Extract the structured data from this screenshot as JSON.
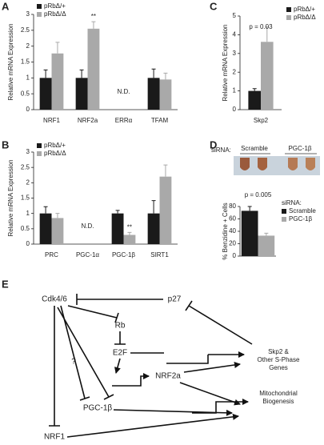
{
  "panel_labels": [
    "A",
    "B",
    "C",
    "D",
    "E"
  ],
  "image_labels": [
    "siRNA:",
    "Scramble",
    "PGC-1β"
  ],
  "chart_data": [
    {
      "type": "bar",
      "ylabel": "Relative mRNA Expression",
      "categories": [
        "NRF1",
        "NRF2a",
        "ERRα",
        "TFAM"
      ],
      "series": [
        {
          "name": "pRbΔ/+",
          "color": "#1a1a1a",
          "values": [
            1,
            1,
            null,
            1
          ],
          "errors": [
            0.25,
            0.25,
            null,
            0.28
          ]
        },
        {
          "name": "pRbΔ/Δ",
          "color": "#a9a9a9",
          "values": [
            1.77,
            2.55,
            null,
            0.95
          ],
          "errors": [
            0.35,
            0.22,
            null,
            0.2
          ]
        }
      ],
      "annotations": [
        "**",
        "N.D."
      ],
      "ylim": [
        0,
        3
      ],
      "yticks": [
        0,
        0.5,
        1,
        1.5,
        2,
        2.5,
        3
      ]
    },
    {
      "type": "bar",
      "ylabel": "Relative mRNA Expression",
      "categories": [
        "PRC",
        "PGC-1α",
        "PGC-1β",
        "SIRT1"
      ],
      "series": [
        {
          "name": "pRbΔ/+",
          "color": "#1a1a1a",
          "values": [
            1,
            null,
            1,
            1
          ],
          "errors": [
            0.22,
            null,
            0.1,
            0.42
          ]
        },
        {
          "name": "pRbΔ/Δ",
          "color": "#a9a9a9",
          "values": [
            0.85,
            null,
            0.3,
            2.2
          ],
          "errors": [
            0.15,
            null,
            0.08,
            0.38
          ]
        }
      ],
      "annotations": [
        "**",
        "N.D."
      ],
      "ylim": [
        0,
        3
      ],
      "yticks": [
        0,
        0.5,
        1,
        1.5,
        2,
        2.5,
        3
      ]
    },
    {
      "type": "bar",
      "ylabel": "Relative mRNA Expression",
      "categories": [
        "Skp2"
      ],
      "series": [
        {
          "name": "pRbΔ/+",
          "color": "#1a1a1a",
          "values": [
            1
          ],
          "errors": [
            0.12
          ]
        },
        {
          "name": "pRbΔ/Δ",
          "color": "#a9a9a9",
          "values": [
            3.62
          ],
          "errors": [
            0.8
          ]
        }
      ],
      "annotations": [
        "p = 0.03"
      ],
      "ylim": [
        0,
        5
      ],
      "yticks": [
        0,
        1,
        2,
        3,
        4,
        5
      ]
    },
    {
      "type": "bar",
      "ylabel": "% Benzidine + Cells",
      "legend_title": "siRNA:",
      "series": [
        {
          "name": "Scramble",
          "color": "#1a1a1a",
          "values": [
            73
          ],
          "errors": [
            7
          ]
        },
        {
          "name": "PGC-1β",
          "color": "#a9a9a9",
          "values": [
            33
          ],
          "errors": [
            4
          ]
        }
      ],
      "annotations": [
        "p = 0.005"
      ],
      "ylim": [
        0,
        80
      ],
      "yticks": [
        0,
        20,
        40,
        60,
        80
      ]
    }
  ],
  "diagram": {
    "nodes": [
      "Cdk4/6",
      "p27",
      "Rb",
      "E2F",
      "NRF2a",
      "PGC-1β",
      "NRF1",
      "Skp2 &",
      "Other S-Phase",
      "Genes",
      "Mitochondrial",
      "Biogenesis",
      "?"
    ]
  }
}
